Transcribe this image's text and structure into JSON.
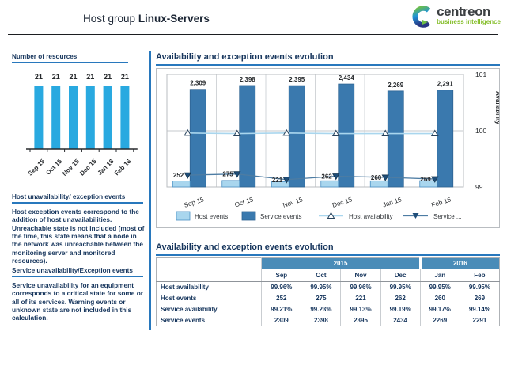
{
  "header": {
    "title_prefix": "Host group",
    "title_name": "Linux-Servers",
    "logo_name": "centreon",
    "logo_sub": "business intelligence"
  },
  "colors": {
    "accent_blue": "#2878bd",
    "navy_text": "#17365d",
    "table_header_blue": "#4a8cb8",
    "resource_bar_cyan": "#29a9e0",
    "service_bar_blue": "#3a79ae",
    "host_bar_light_blue": "#a9d6ee",
    "logo_green": "#84bd28"
  },
  "sidebar": {
    "resources_title": "Number of resources",
    "sections": [
      {
        "title": "Host unavailability/ exception events",
        "body": "Host exception events correspond to the addition of host unavailabilities. Unreachable state is not included (most of the time, this state means that a node in the network was unreachable between the monitoring server and monitored resources)."
      },
      {
        "title": "Service unavailability/Exception events",
        "body": "Service unavailability for an equipment corresponds to a critical state for some or all of its services. Warning events or unknown state are not included in this calculation."
      }
    ]
  },
  "main": {
    "chart_section": {
      "title": "Availability and exception events evolution"
    },
    "table_section": {
      "title": "Availability and exception events evolution",
      "table": {
        "year_groups": [
          {
            "label": "2015",
            "span": 4
          },
          {
            "label": "2016",
            "span": 2
          }
        ],
        "columns": [
          "Sep",
          "Oct",
          "Nov",
          "Dec",
          "Jan",
          "Feb"
        ],
        "rows": [
          {
            "label": "Host availability",
            "values": [
              "99.96%",
              "99.95%",
              "99.96%",
              "99.95%",
              "99.95%",
              "99.95%"
            ]
          },
          {
            "label": "Host events",
            "values": [
              "252",
              "275",
              "221",
              "262",
              "260",
              "269"
            ]
          },
          {
            "label": "Service availability",
            "values": [
              "99.21%",
              "99.23%",
              "99.13%",
              "99.19%",
              "99.17%",
              "99.14%"
            ]
          },
          {
            "label": "Service events",
            "values": [
              "2309",
              "2398",
              "2395",
              "2434",
              "2269",
              "2291"
            ]
          }
        ]
      }
    }
  },
  "chart_data": [
    {
      "type": "bar",
      "title": "Number of resources",
      "categories": [
        "Sep 15",
        "Oct 15",
        "Nov 15",
        "Dec 15",
        "Jan 16",
        "Feb 16"
      ],
      "values": [
        21,
        21,
        21,
        21,
        21,
        21
      ],
      "bar_color": "#29a9e0",
      "data_labels": true,
      "ylim": [
        0,
        21
      ]
    },
    {
      "type": "bar",
      "title": "Availability and exception events evolution",
      "categories": [
        "Sep 15",
        "Oct 15",
        "Nov 15",
        "Dec 15",
        "Jan 16",
        "Feb 16"
      ],
      "series": [
        {
          "name": "Host events",
          "type": "bar",
          "color": "#a9d6ee",
          "border": "#4a90c4",
          "values": [
            252,
            275,
            221,
            262,
            260,
            269
          ]
        },
        {
          "name": "Service events",
          "type": "bar",
          "color": "#3a79ae",
          "border": "#2e6392",
          "values": [
            2309,
            2398,
            2395,
            2434,
            2269,
            2291
          ]
        },
        {
          "name": "Host availability",
          "type": "line",
          "color": "#a9d6ee",
          "marker": "triangle-up",
          "axis": "right",
          "values": [
            99.96,
            99.95,
            99.96,
            99.95,
            99.95,
            99.95
          ]
        },
        {
          "name": "Service ...",
          "type": "line",
          "color": "#4d7ca3",
          "marker": "triangle-down",
          "axis": "right",
          "values": [
            99.21,
            99.23,
            99.13,
            99.19,
            99.17,
            99.14
          ]
        }
      ],
      "right_axis": {
        "label": "Availability",
        "ticks": [
          101,
          100,
          99
        ],
        "range": [
          99,
          101
        ]
      },
      "legend": [
        "Host events",
        "Service events",
        "Host availability",
        "Service ..."
      ],
      "legend_position": "bottom",
      "grid": true
    }
  ]
}
